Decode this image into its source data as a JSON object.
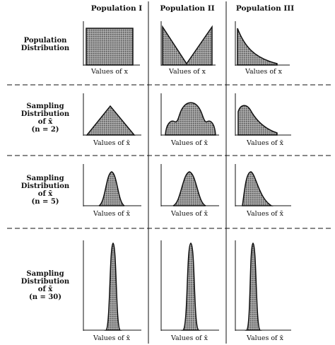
{
  "columns": [
    "Population I",
    "Population II",
    "Population III"
  ],
  "rows": [
    {
      "label": [
        "Population",
        "Distribution"
      ],
      "xlabel": "Values of x"
    },
    {
      "label": [
        "Sampling",
        "Distribution",
        "of x̄",
        "(n = 2)"
      ],
      "xlabel": "Values of x̄"
    },
    {
      "label": [
        "Sampling",
        "Distribution",
        "of x̄",
        "(n = 5)"
      ],
      "xlabel": "Values of x̄"
    },
    {
      "label": [
        "Sampling",
        "Distribution",
        "of x̄",
        "(n = 30)"
      ],
      "xlabel": "Values of x̄"
    }
  ],
  "colors": {
    "ink": "#111111",
    "fill": "#8a8a8a"
  }
}
